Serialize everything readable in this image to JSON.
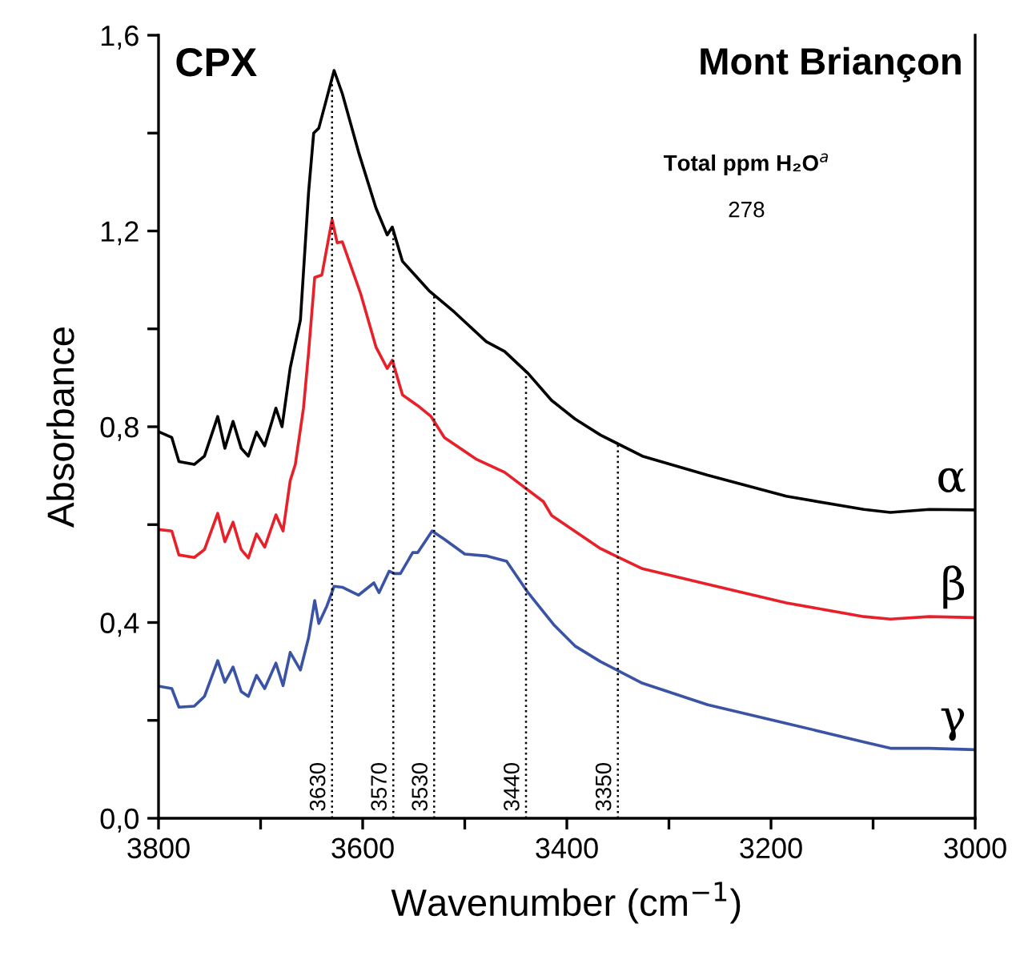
{
  "chart_data": {
    "type": "line",
    "title": "Mont Briançon",
    "xlabel": "Wavenumber (cm$^{−1}$)",
    "ylabel": "Absorbance",
    "annotations": [
      "CPX",
      "Total ppm H₂O$^{a}$",
      "278"
    ],
    "xlim": [
      3800,
      3000
    ],
    "ylim": [
      0,
      1.6
    ],
    "xticks": [
      3800,
      {
        "value": 3700,
        "label": null
      },
      3600,
      {
        "value": 3500,
        "label": null
      },
      3400,
      {
        "value": 3300,
        "label": null
      },
      3200,
      {
        "value": 3100,
        "label": null
      },
      3000
    ],
    "yticks": [
      {
        "value": 0,
        "label": "0,0"
      },
      {
        "value": 0.2,
        "label": null
      },
      {
        "value": 0.4,
        "label": "0,4"
      },
      {
        "value": 0.6,
        "label": null
      },
      {
        "value": 0.8,
        "label": "0,8"
      },
      {
        "value": 1.0,
        "label": null
      },
      {
        "value": 1.2,
        "label": "1,2"
      },
      {
        "value": 1.4,
        "label": null
      },
      {
        "value": 1.6,
        "label": "1,6"
      }
    ],
    "grid": false,
    "legend": false,
    "marker": "none",
    "line_style": "solid",
    "ref_lines": [
      {
        "axis": "x",
        "value": 3630,
        "label": "3630",
        "color": "#000000",
        "line_style": "dotted"
      },
      {
        "axis": "x",
        "value": 3570,
        "label": "3570",
        "color": "#000000",
        "line_style": "dotted"
      },
      {
        "axis": "x",
        "value": 3530,
        "label": "3530",
        "color": "#000000",
        "line_style": "dotted"
      },
      {
        "axis": "x",
        "value": 3440,
        "label": "3440",
        "color": "#000000",
        "line_style": "dotted"
      },
      {
        "axis": "x",
        "value": 3350,
        "label": "3350",
        "color": "#000000",
        "line_style": "dotted"
      }
    ],
    "series": [
      {
        "name": "α",
        "color": "#000000",
        "x": [
          3800,
          3787,
          3780,
          3765,
          3755,
          3742,
          3735,
          3727,
          3719,
          3712,
          3704,
          3696,
          3685,
          3679,
          3671,
          3661,
          3653,
          3648,
          3643,
          3628,
          3620,
          3604,
          3587,
          3576,
          3571,
          3561,
          3535,
          3510,
          3479,
          3461,
          3438,
          3415,
          3392,
          3367,
          3326,
          3262,
          3185,
          3109,
          3083,
          3045,
          3000
        ],
        "values": [
          0.79,
          0.778,
          0.729,
          0.723,
          0.74,
          0.821,
          0.756,
          0.811,
          0.756,
          0.74,
          0.789,
          0.761,
          0.838,
          0.8,
          0.92,
          1.018,
          1.279,
          1.4,
          1.41,
          1.528,
          1.481,
          1.361,
          1.247,
          1.192,
          1.208,
          1.138,
          1.078,
          1.034,
          0.974,
          0.954,
          0.909,
          0.854,
          0.816,
          0.783,
          0.74,
          0.701,
          0.658,
          0.631,
          0.625,
          0.631,
          0.63
        ]
      },
      {
        "name": "β",
        "color": "#e8202a",
        "x": [
          3800,
          3787,
          3780,
          3765,
          3755,
          3742,
          3735,
          3727,
          3719,
          3712,
          3704,
          3696,
          3685,
          3678,
          3671,
          3666,
          3658,
          3653,
          3647,
          3640,
          3630,
          3625,
          3620,
          3602,
          3587,
          3576,
          3571,
          3561,
          3546,
          3533,
          3520,
          3489,
          3461,
          3423,
          3415,
          3367,
          3326,
          3262,
          3185,
          3109,
          3083,
          3045,
          3000
        ],
        "values": [
          0.59,
          0.587,
          0.538,
          0.533,
          0.549,
          0.623,
          0.565,
          0.605,
          0.549,
          0.532,
          0.581,
          0.554,
          0.62,
          0.587,
          0.69,
          0.723,
          0.838,
          0.952,
          1.105,
          1.11,
          1.223,
          1.176,
          1.178,
          1.072,
          0.963,
          0.919,
          0.936,
          0.865,
          0.843,
          0.821,
          0.778,
          0.734,
          0.707,
          0.647,
          0.619,
          0.551,
          0.51,
          0.478,
          0.44,
          0.412,
          0.407,
          0.412,
          0.41
        ]
      },
      {
        "name": "γ",
        "color": "#3a53a4",
        "x": [
          3800,
          3787,
          3780,
          3765,
          3755,
          3742,
          3735,
          3727,
          3719,
          3712,
          3704,
          3696,
          3685,
          3678,
          3671,
          3661,
          3653,
          3647,
          3643,
          3635,
          3628,
          3620,
          3604,
          3589,
          3584,
          3574,
          3569,
          3563,
          3551,
          3546,
          3532,
          3520,
          3500,
          3479,
          3459,
          3438,
          3413,
          3392,
          3367,
          3326,
          3262,
          3185,
          3109,
          3083,
          3045,
          3000
        ],
        "values": [
          0.27,
          0.265,
          0.227,
          0.229,
          0.249,
          0.322,
          0.278,
          0.309,
          0.259,
          0.249,
          0.292,
          0.265,
          0.317,
          0.271,
          0.339,
          0.303,
          0.369,
          0.445,
          0.398,
          0.434,
          0.474,
          0.472,
          0.456,
          0.481,
          0.461,
          0.505,
          0.5,
          0.5,
          0.543,
          0.543,
          0.587,
          0.57,
          0.54,
          0.536,
          0.525,
          0.461,
          0.396,
          0.352,
          0.32,
          0.276,
          0.232,
          0.194,
          0.156,
          0.143,
          0.143,
          0.14
        ]
      }
    ]
  }
}
